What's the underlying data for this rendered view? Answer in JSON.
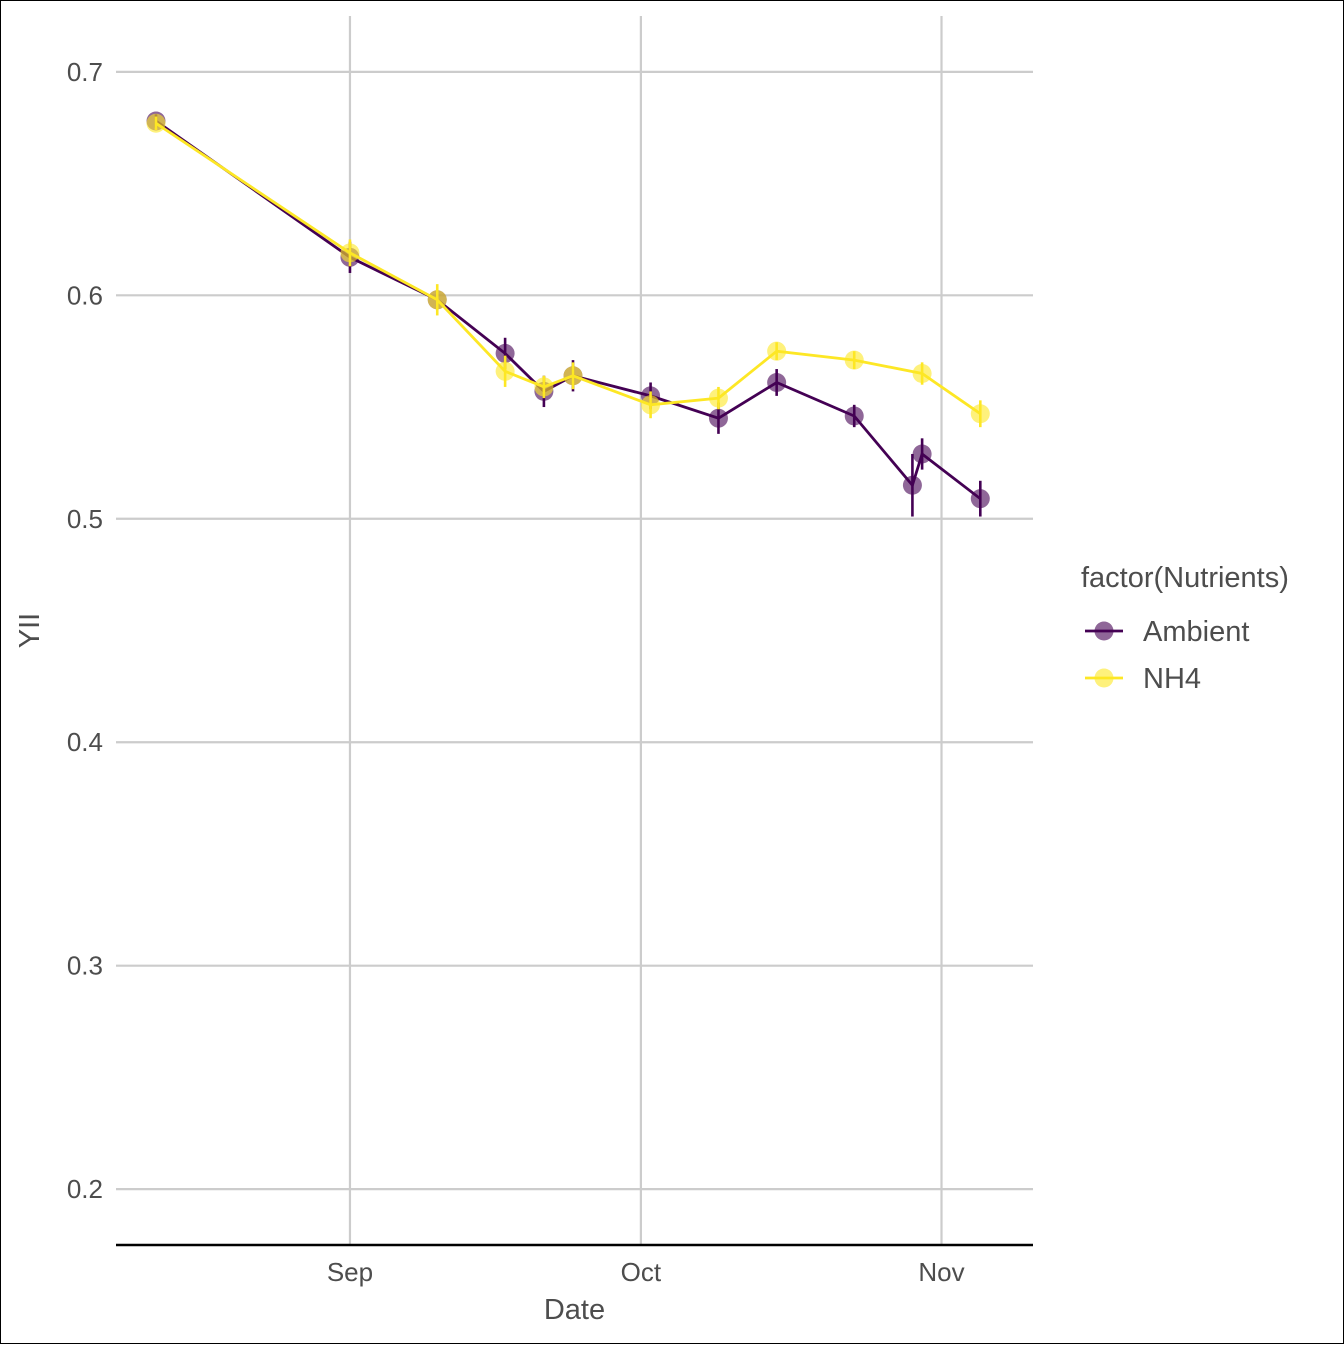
{
  "chart_data": {
    "type": "line",
    "xlabel": "Date",
    "ylabel": "YII",
    "x_ticks": [
      {
        "date": "2021-09-01",
        "label": "Sep"
      },
      {
        "date": "2021-10-01",
        "label": "Oct"
      },
      {
        "date": "2021-11-01",
        "label": "Nov"
      }
    ],
    "y_ticks": [
      0.2,
      0.3,
      0.4,
      0.5,
      0.6,
      0.7
    ],
    "xlim": [
      "2021-08-12",
      "2021-11-06"
    ],
    "ylim": [
      0.175,
      0.725
    ],
    "grid": true,
    "legend": {
      "title": "factor(Nutrients)",
      "position": "right",
      "entries": [
        "Ambient",
        "NH4"
      ]
    },
    "series": [
      {
        "name": "Ambient",
        "color": "#440154",
        "points": [
          {
            "date": "2021-08-12",
            "y": 0.678,
            "err": 0.003
          },
          {
            "date": "2021-09-01",
            "y": 0.617,
            "err": 0.007
          },
          {
            "date": "2021-09-10",
            "y": 0.598,
            "err": 0.004
          },
          {
            "date": "2021-09-17",
            "y": 0.574,
            "err": 0.007
          },
          {
            "date": "2021-09-21",
            "y": 0.557,
            "err": 0.007
          },
          {
            "date": "2021-09-24",
            "y": 0.564,
            "err": 0.007
          },
          {
            "date": "2021-10-02",
            "y": 0.555,
            "err": 0.006
          },
          {
            "date": "2021-10-09",
            "y": 0.545,
            "err": 0.007
          },
          {
            "date": "2021-10-15",
            "y": 0.561,
            "err": 0.006
          },
          {
            "date": "2021-10-23",
            "y": 0.546,
            "err": 0.005
          },
          {
            "date": "2021-10-29",
            "y": 0.515,
            "err": 0.014
          },
          {
            "date": "2021-10-30",
            "y": 0.529,
            "err": 0.007
          },
          {
            "date": "2021-11-05",
            "y": 0.509,
            "err": 0.008
          }
        ]
      },
      {
        "name": "NH4",
        "color": "#FDE725",
        "points": [
          {
            "date": "2021-08-12",
            "y": 0.677,
            "err": 0.003
          },
          {
            "date": "2021-09-01",
            "y": 0.619,
            "err": 0.006
          },
          {
            "date": "2021-09-10",
            "y": 0.598,
            "err": 0.007
          },
          {
            "date": "2021-09-17",
            "y": 0.566,
            "err": 0.007
          },
          {
            "date": "2021-09-21",
            "y": 0.559,
            "err": 0.005
          },
          {
            "date": "2021-09-24",
            "y": 0.564,
            "err": 0.006
          },
          {
            "date": "2021-10-02",
            "y": 0.551,
            "err": 0.006
          },
          {
            "date": "2021-10-09",
            "y": 0.554,
            "err": 0.005
          },
          {
            "date": "2021-10-15",
            "y": 0.575,
            "err": 0.004
          },
          {
            "date": "2021-10-23",
            "y": 0.571,
            "err": 0.004
          },
          {
            "date": "2021-10-30",
            "y": 0.565,
            "err": 0.005
          },
          {
            "date": "2021-11-05",
            "y": 0.547,
            "err": 0.006
          }
        ]
      }
    ]
  }
}
